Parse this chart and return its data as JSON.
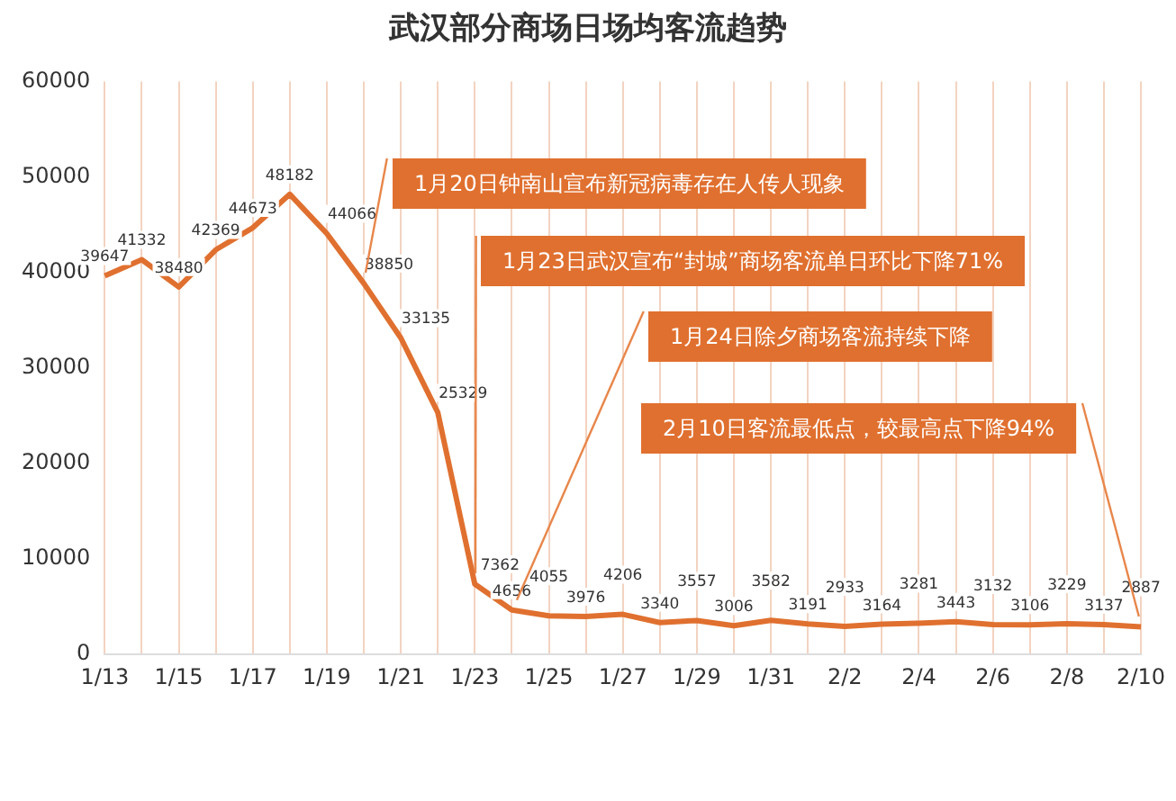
{
  "chart_data": {
    "type": "line",
    "title": "武汉部分商场日场均客流趋势",
    "categories": [
      "1/13",
      null,
      "1/15",
      null,
      "1/17",
      null,
      "1/19",
      null,
      "1/21",
      null,
      "1/23",
      null,
      "1/25",
      null,
      "1/27",
      null,
      "1/29",
      null,
      "1/31",
      null,
      "2/2",
      null,
      "2/4",
      null,
      "2/6",
      null,
      "2/8",
      null,
      "2/10"
    ],
    "values": [
      39647,
      41332,
      38480,
      42369,
      44673,
      48182,
      44066,
      38850,
      33135,
      25329,
      7362,
      4656,
      4055,
      3976,
      4206,
      3340,
      3557,
      3006,
      3582,
      3191,
      2933,
      3164,
      3281,
      3443,
      3132,
      3106,
      3229,
      3137,
      2887
    ],
    "color": "#e0702f",
    "ylim": [
      0,
      60000
    ],
    "yticks": [
      0,
      10000,
      20000,
      30000,
      40000,
      50000,
      60000
    ],
    "grid": "x",
    "marker": "none",
    "data_labels": true,
    "legend": false,
    "annotations": [
      "1月20日钟南山宣布新冠病毒存在人传人现象",
      "1月23日武汉宣布“封城”商场客流单日环比下降71%",
      "1月24日除夕商场客流持续下降",
      "2月10日客流最低点，较最高点下降94%"
    ]
  }
}
